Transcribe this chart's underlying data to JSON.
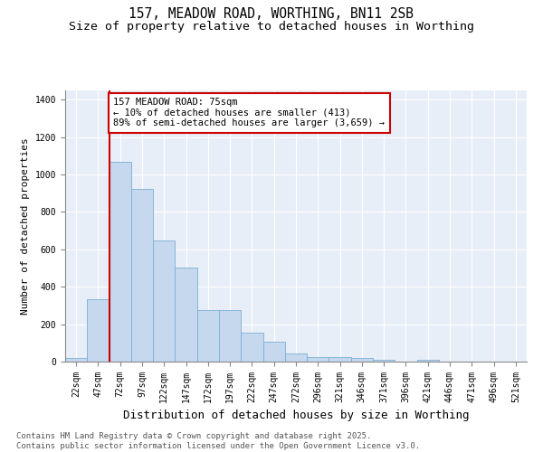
{
  "title": "157, MEADOW ROAD, WORTHING, BN11 2SB",
  "subtitle": "Size of property relative to detached houses in Worthing",
  "xlabel": "Distribution of detached houses by size in Worthing",
  "ylabel": "Number of detached properties",
  "categories": [
    "22sqm",
    "47sqm",
    "72sqm",
    "97sqm",
    "122sqm",
    "147sqm",
    "172sqm",
    "197sqm",
    "222sqm",
    "247sqm",
    "272sqm",
    "296sqm",
    "321sqm",
    "346sqm",
    "371sqm",
    "396sqm",
    "421sqm",
    "446sqm",
    "471sqm",
    "496sqm",
    "521sqm"
  ],
  "values": [
    20,
    335,
    1068,
    925,
    650,
    505,
    275,
    275,
    155,
    107,
    45,
    25,
    22,
    18,
    10,
    0,
    8,
    0,
    0,
    0,
    0
  ],
  "bar_color": "#c5d8ee",
  "bar_edge_color": "#7aafd4",
  "vline_color": "#cc0000",
  "vline_x": 1.5,
  "annotation_text": "157 MEADOW ROAD: 75sqm\n← 10% of detached houses are smaller (413)\n89% of semi-detached houses are larger (3,659) →",
  "annotation_box_facecolor": "white",
  "annotation_box_edgecolor": "#cc0000",
  "ylim": [
    0,
    1450
  ],
  "yticks": [
    0,
    200,
    400,
    600,
    800,
    1000,
    1200,
    1400
  ],
  "plot_bg_color": "#e8eef8",
  "grid_color": "#d0d8e8",
  "footer": "Contains HM Land Registry data © Crown copyright and database right 2025.\nContains public sector information licensed under the Open Government Licence v3.0.",
  "title_fontsize": 10.5,
  "subtitle_fontsize": 9.5,
  "xlabel_fontsize": 9,
  "ylabel_fontsize": 8,
  "tick_fontsize": 7,
  "annot_fontsize": 7.5,
  "footer_fontsize": 6.5
}
